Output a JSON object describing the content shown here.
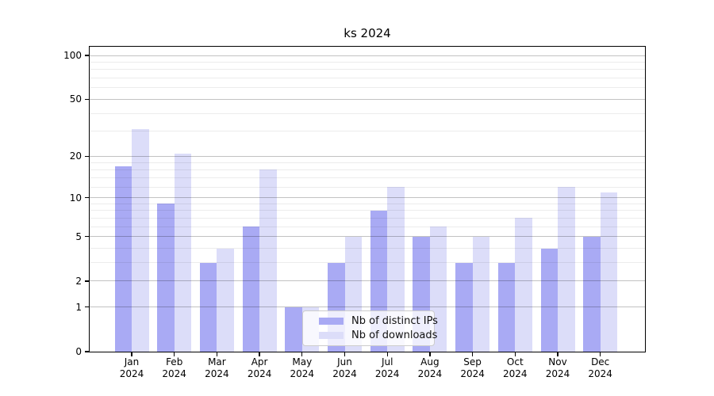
{
  "title": "ks 2024",
  "chart_data": {
    "type": "bar",
    "title": "ks 2024",
    "categories": [
      "Jan",
      "Feb",
      "Mar",
      "Apr",
      "May",
      "Jun",
      "Jul",
      "Aug",
      "Sep",
      "Oct",
      "Nov",
      "Dec"
    ],
    "category_year": "2024",
    "series": [
      {
        "name": "Nb of distinct IPs",
        "color": "#a9aaf4",
        "values": [
          17,
          9,
          3,
          6,
          1,
          3,
          8,
          5,
          3,
          3,
          4,
          5
        ]
      },
      {
        "name": "Nb of downloads",
        "color": "#dcddf9",
        "values": [
          31,
          21,
          4,
          16,
          1,
          5,
          12,
          6,
          5,
          7,
          12,
          11
        ]
      }
    ],
    "y_axis": {
      "scale": "log1p",
      "ticks": [
        0,
        1,
        2,
        5,
        10,
        20,
        50,
        100
      ],
      "minor_ticks": [
        3,
        4,
        6,
        7,
        8,
        9,
        12,
        14,
        16,
        18,
        30,
        40,
        60,
        70,
        80,
        90
      ],
      "max": 114
    },
    "grid": true,
    "legend_position": "lower center"
  }
}
